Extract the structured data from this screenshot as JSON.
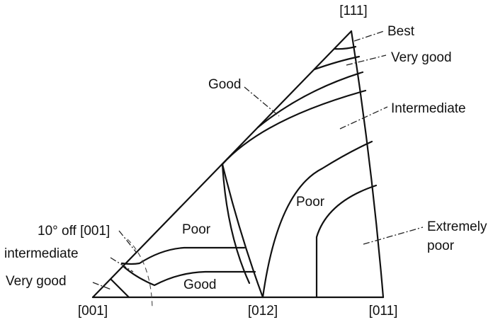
{
  "diagram": {
    "corners": {
      "c001": "[001]",
      "c012": "[012]",
      "c011": "[011]",
      "c111": "[111]"
    },
    "labels": {
      "best": "Best",
      "very_good_top": "Very good",
      "good_top": "Good",
      "intermediate_right": "Intermediate",
      "poor_center": "Poor",
      "poor_right": "Poor",
      "extremely_poor_1": "Extremely",
      "extremely_poor_2": "poor",
      "off_001": "10° off [001]",
      "intermediate_left": "intermediate",
      "very_good_left": "Very good",
      "good_bottom": "Good"
    }
  }
}
